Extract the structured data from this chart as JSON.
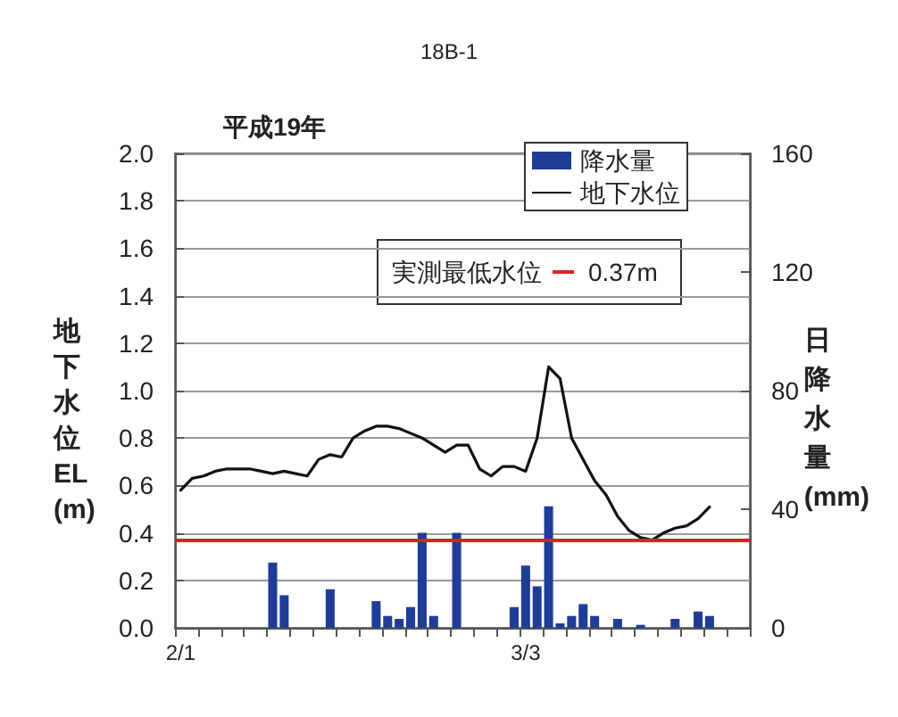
{
  "chart_data": {
    "type": "bar",
    "title": "18B-1",
    "subtitle": "平成19年",
    "ylabel": "地下水位EL(m)",
    "y2label": "日降水量(mm)",
    "categories": [
      "2/1",
      null,
      null,
      null,
      null,
      null,
      null,
      null,
      null,
      null,
      null,
      null,
      null,
      null,
      null,
      null,
      null,
      null,
      null,
      null,
      null,
      null,
      null,
      null,
      null,
      null,
      null,
      null,
      null,
      null,
      "3/3",
      null,
      null,
      null,
      null,
      null,
      null,
      null,
      null,
      null,
      null,
      null,
      null,
      null,
      null,
      null,
      null,
      null,
      null,
      null
    ],
    "series": [
      {
        "name": "降水量",
        "axis": "y2",
        "color": "#1f3c96",
        "values": [
          0,
          0,
          0,
          0,
          0,
          0,
          0,
          0,
          22,
          11,
          0,
          0,
          0,
          13,
          0,
          0,
          0,
          9,
          4,
          3,
          7,
          32,
          4,
          0,
          32,
          0,
          0,
          0,
          0,
          7,
          21,
          14,
          41,
          1.5,
          4,
          8,
          4,
          0,
          3,
          0,
          1,
          0,
          0,
          3,
          0,
          5.5,
          4,
          0,
          0,
          0
        ]
      },
      {
        "name": "地下水位",
        "type": "line",
        "axis": "y",
        "color": "#111111",
        "values": [
          0.58,
          0.63,
          0.64,
          0.66,
          0.67,
          0.67,
          0.67,
          0.66,
          0.65,
          0.66,
          0.65,
          0.64,
          0.71,
          0.73,
          0.72,
          0.8,
          0.83,
          0.85,
          0.85,
          0.84,
          0.82,
          0.8,
          0.77,
          0.74,
          0.77,
          0.77,
          0.67,
          0.64,
          0.68,
          0.68,
          0.66,
          0.8,
          1.1,
          1.05,
          0.8,
          0.71,
          0.62,
          0.56,
          0.47,
          0.41,
          0.38,
          0.37,
          0.4,
          0.42,
          0.43,
          0.46,
          0.51,
          null,
          null,
          null
        ]
      }
    ],
    "ylim": [
      0,
      2
    ],
    "yticks": [
      {
        "value": 0,
        "label": "0.0"
      },
      {
        "value": 0.2,
        "label": "0.2"
      },
      {
        "value": 0.4,
        "label": "0.4"
      },
      {
        "value": 0.6,
        "label": "0.6"
      },
      {
        "value": 0.8,
        "label": "0.8"
      },
      {
        "value": 1,
        "label": "1.0"
      },
      {
        "value": 1.2,
        "label": "1.2"
      },
      {
        "value": 1.4,
        "label": "1.4"
      },
      {
        "value": 1.6,
        "label": "1.6"
      },
      {
        "value": 1.8,
        "label": "1.8"
      },
      {
        "value": 2,
        "label": "2.0"
      }
    ],
    "y2lim": [
      0,
      160
    ],
    "y2ticks": [
      0,
      40,
      80,
      120,
      160
    ],
    "ref_lines": [
      {
        "axis": "y",
        "value": 0.37,
        "color": "#e02020",
        "line_style": "solid"
      }
    ],
    "annotations": [
      "実測最低水位",
      "0.37m"
    ],
    "grid": "y",
    "legend": "top right",
    "marker": "none",
    "line_style": "solid"
  }
}
